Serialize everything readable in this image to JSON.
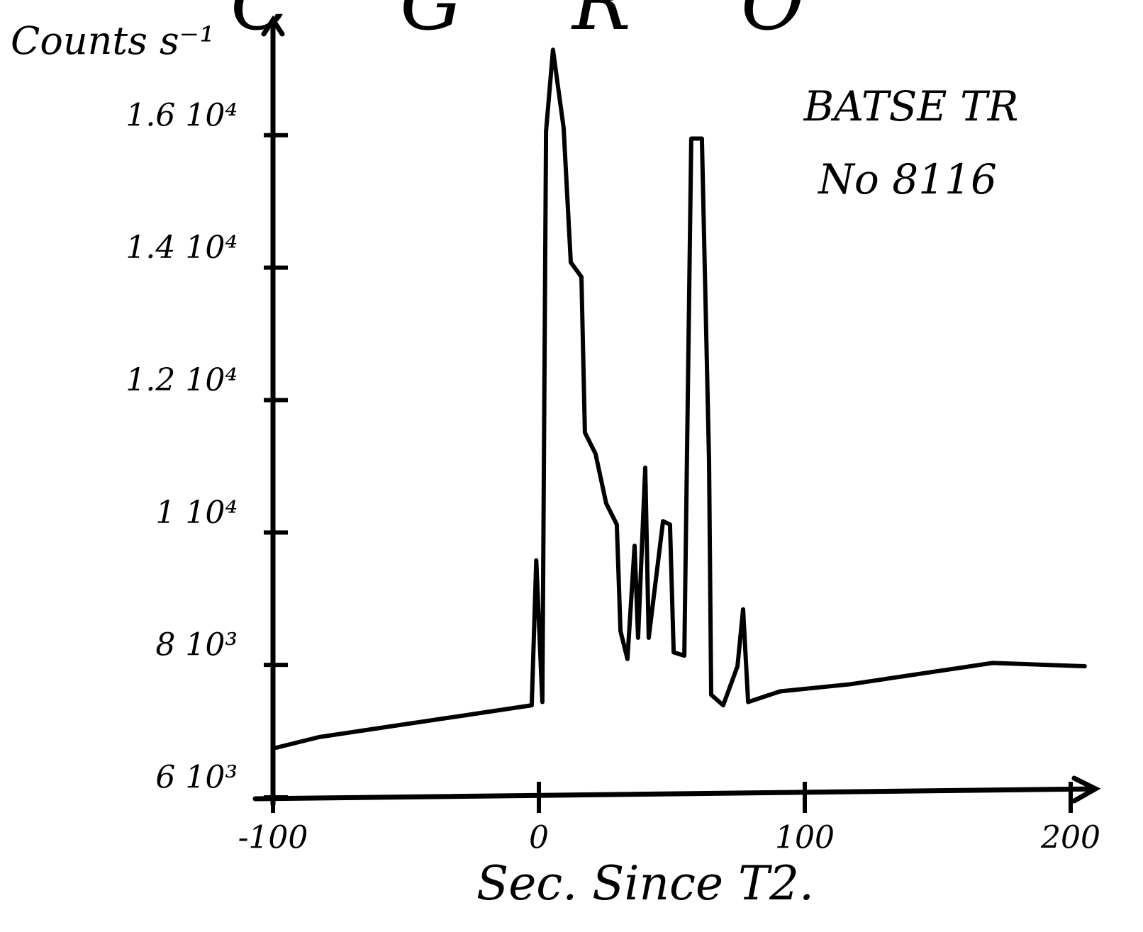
{
  "chart_data": {
    "type": "line",
    "title": "C G R O",
    "y_label": "Counts s⁻¹",
    "x_label": "Sec. Since T2.",
    "annotations": [
      "BATSE TR",
      "No 8116"
    ],
    "x": [
      -98.7,
      -82.7,
      -56,
      -29.3,
      -2.7,
      -1,
      1.3,
      2.7,
      5.3,
      9.3,
      12,
      16,
      17.3,
      21.3,
      25.3,
      29.3,
      30.7,
      33.3,
      36,
      37.3,
      40,
      41.3,
      46.7,
      49.3,
      50.7,
      54.7,
      57.3,
      61.3,
      64,
      64.8,
      69.3,
      74.7,
      76.8,
      78.7,
      90.7,
      117.3,
      144,
      170.7,
      205.3
    ],
    "series": [
      {
        "name": "BATSE TR No 8116",
        "color": "#000000",
        "values": [
          6750,
          6910,
          7070,
          7230,
          7390,
          9580,
          7440,
          16060,
          17290,
          16110,
          14080,
          13860,
          11510,
          11190,
          10440,
          10120,
          8510,
          8090,
          9800,
          8410,
          10980,
          8410,
          10170,
          10120,
          8190,
          8140,
          15950,
          15950,
          11080,
          7550,
          7390,
          7980,
          8840,
          7440,
          7600,
          7710,
          7870,
          8030,
          7980
        ]
      }
    ],
    "xlim": [
      -100,
      208
    ],
    "ylim": [
      6000,
      17700
    ],
    "xticks": [
      -100,
      0,
      100,
      200
    ],
    "yticks": [
      {
        "value": 6000,
        "label": "6 10³"
      },
      {
        "value": 8000,
        "label": "8 10³"
      },
      {
        "value": 10000,
        "label": "1 10⁴"
      },
      {
        "value": 12000,
        "label": "1.2 10⁴"
      },
      {
        "value": 14000,
        "label": "1.4 10⁴"
      },
      {
        "value": 16000,
        "label": "1.6 10⁴"
      }
    ],
    "grid": false
  }
}
